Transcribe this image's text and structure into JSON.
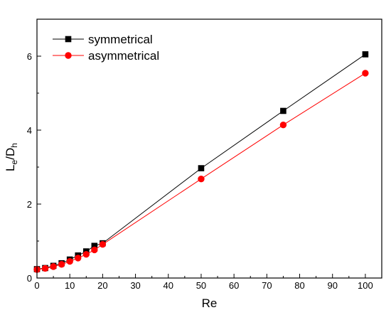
{
  "chart_data": {
    "type": "line",
    "xlabel": "Re",
    "ylabel": "Le/Dh",
    "ylabel_parts": {
      "base1": "L",
      "sub1": "e",
      "slash": "/",
      "base2": "D",
      "sub2": "h"
    },
    "xlim": [
      0,
      105
    ],
    "ylim": [
      0,
      7
    ],
    "x_ticks": [
      0,
      10,
      20,
      30,
      40,
      50,
      60,
      70,
      80,
      90,
      100
    ],
    "y_ticks": [
      0,
      2,
      4,
      6
    ],
    "grid": false,
    "legend_position": "top-left",
    "series": [
      {
        "name": "symmetrical",
        "color": "#000000",
        "marker": "square",
        "x": [
          0,
          2.5,
          5,
          7.5,
          10,
          12.5,
          15,
          17.5,
          20,
          50,
          75,
          100
        ],
        "y": [
          0.24,
          0.27,
          0.33,
          0.4,
          0.5,
          0.61,
          0.72,
          0.87,
          0.94,
          2.97,
          4.52,
          6.05
        ]
      },
      {
        "name": "asymmetrical",
        "color": "#ff0000",
        "marker": "circle",
        "x": [
          0,
          2.5,
          5,
          7.5,
          10,
          12.5,
          15,
          17.5,
          20,
          50,
          75,
          100
        ],
        "y": [
          0.23,
          0.26,
          0.31,
          0.37,
          0.45,
          0.54,
          0.64,
          0.76,
          0.91,
          2.68,
          4.14,
          5.54
        ]
      }
    ]
  }
}
